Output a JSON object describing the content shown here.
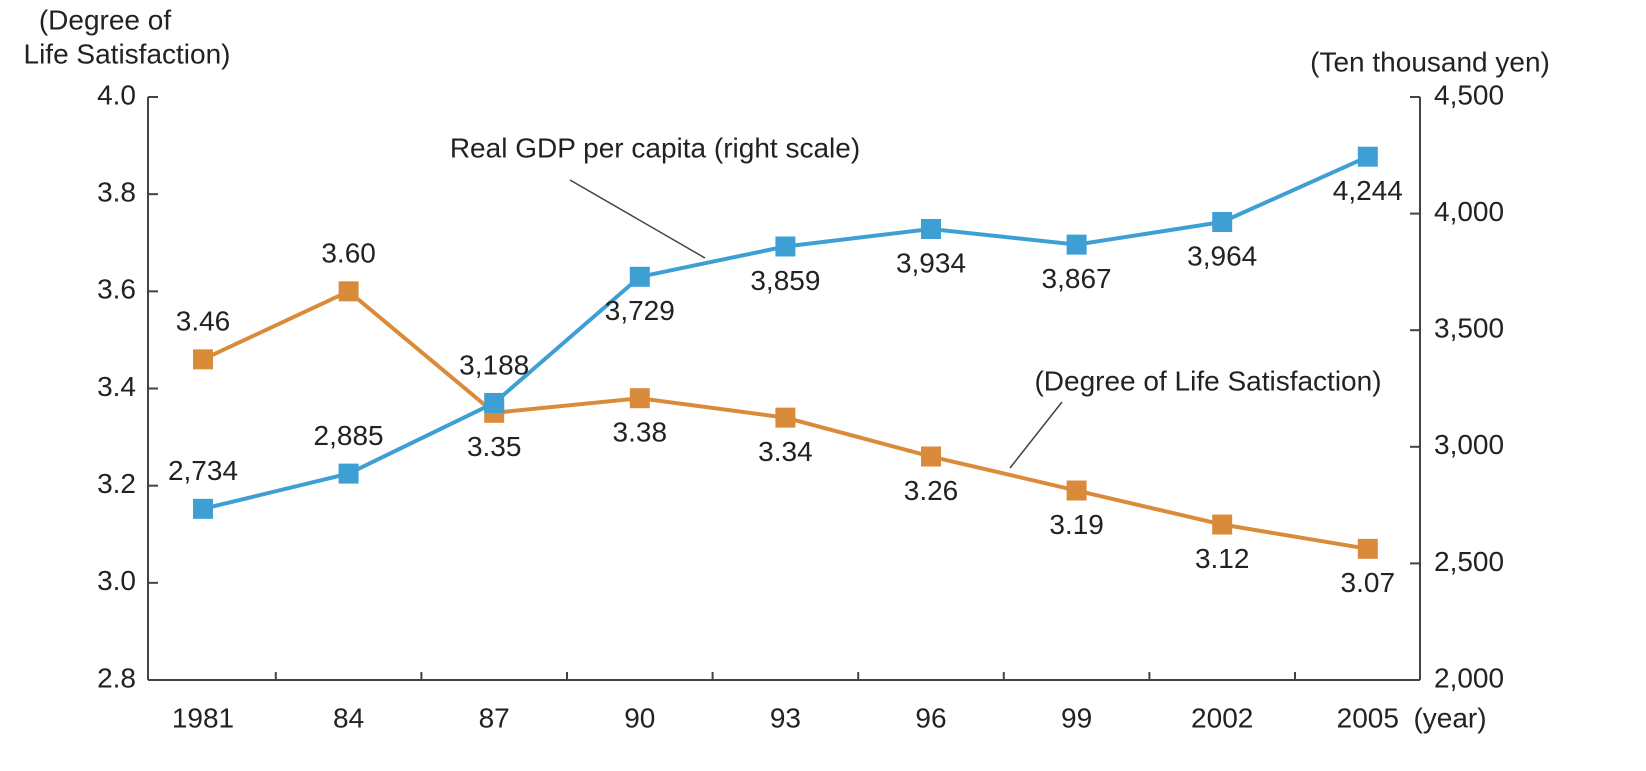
{
  "chart_data": {
    "type": "line",
    "ylabel": [
      "(Degree of",
      "Life Satisfaction)"
    ],
    "y2label": "(Ten thousand yen)",
    "xlabel": "(year)",
    "categories": [
      "1981",
      "84",
      "87",
      "90",
      "93",
      "96",
      "99",
      "2002",
      "2005"
    ],
    "series": [
      {
        "name": "(Degree of Life Satisfaction)",
        "color": "#d98b3a",
        "values": [
          3.46,
          3.6,
          3.35,
          3.38,
          3.34,
          3.26,
          3.19,
          3.12,
          3.07
        ],
        "value_labels": [
          "3.46",
          "3.60",
          "3.35",
          "3.38",
          "3.34",
          "3.26",
          "3.19",
          "3.12",
          "3.07"
        ]
      },
      {
        "name": "Real GDP per capita (right scale)",
        "color": "#3e9fd5",
        "axis": "y2",
        "values": [
          2734,
          2885,
          3188,
          3729,
          3859,
          3934,
          3867,
          3964,
          4244
        ],
        "value_labels": [
          "2,734",
          "2,885",
          "3,188",
          "3,729",
          "3,859",
          "3,934",
          "3,867",
          "3,964",
          "4,244"
        ]
      }
    ],
    "ylim": [
      2.8,
      4.0
    ],
    "yticks": [
      2.8,
      {
        "value": 3.0,
        "label": "3.0"
      },
      3.2,
      3.4,
      3.6,
      3.8,
      {
        "value": 4.0,
        "label": "4.0"
      }
    ],
    "y2lim": [
      2000,
      4500
    ],
    "y2ticks": [
      {
        "value": 2000,
        "label": "2,000"
      },
      {
        "value": 2500,
        "label": "2,500"
      },
      {
        "value": 3000,
        "label": "3,000"
      },
      {
        "value": 3500,
        "label": "3,500"
      },
      {
        "value": 4000,
        "label": "4,000"
      },
      {
        "value": 4500,
        "label": "4,500"
      }
    ],
    "grid": false
  }
}
